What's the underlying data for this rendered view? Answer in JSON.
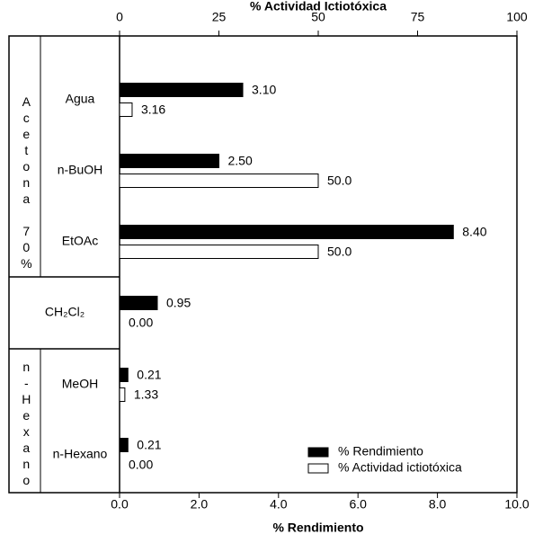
{
  "chart_data": {
    "type": "bar",
    "orientation": "horizontal",
    "xlabel": "% Rendimiento",
    "x2label": "% Actividad Ictiotóxica",
    "categories": [
      "Agua",
      "n-BuOH",
      "EtOAc",
      "CH₂Cl₂",
      "MeOH",
      "n-Hexano"
    ],
    "group_labels": [
      "Acetona 70%",
      "n-Hexano"
    ],
    "series": [
      {
        "name": "% Rendimiento",
        "color": "#000000",
        "axis": "x",
        "values": [
          3.1,
          2.5,
          8.4,
          0.95,
          0.21,
          0.21
        ],
        "value_labels": [
          "3.10",
          "2.50",
          "8.40",
          "0.95",
          "0.21",
          "0.21"
        ]
      },
      {
        "name": "% Actividad ictiotóxica",
        "color": "#ffffff",
        "axis": "x2",
        "values": [
          3.16,
          50.0,
          50.0,
          0.0,
          1.33,
          0.0
        ],
        "value_labels": [
          "3.16",
          "50.0",
          "50.0",
          "0.00",
          "1.33",
          "0.00"
        ]
      }
    ],
    "xlim": [
      0,
      10
    ],
    "xticks": [
      {
        "value": 0,
        "label": "0.0"
      },
      {
        "value": 2,
        "label": "2.0"
      },
      {
        "value": 4,
        "label": "4.0"
      },
      {
        "value": 6,
        "label": "6.0"
      },
      {
        "value": 8,
        "label": "8.0"
      },
      {
        "value": 10,
        "label": "10.0"
      }
    ],
    "x2lim": [
      0,
      100
    ],
    "x2ticks": [
      0,
      25,
      50,
      75,
      100
    ],
    "legend": "lower right"
  }
}
